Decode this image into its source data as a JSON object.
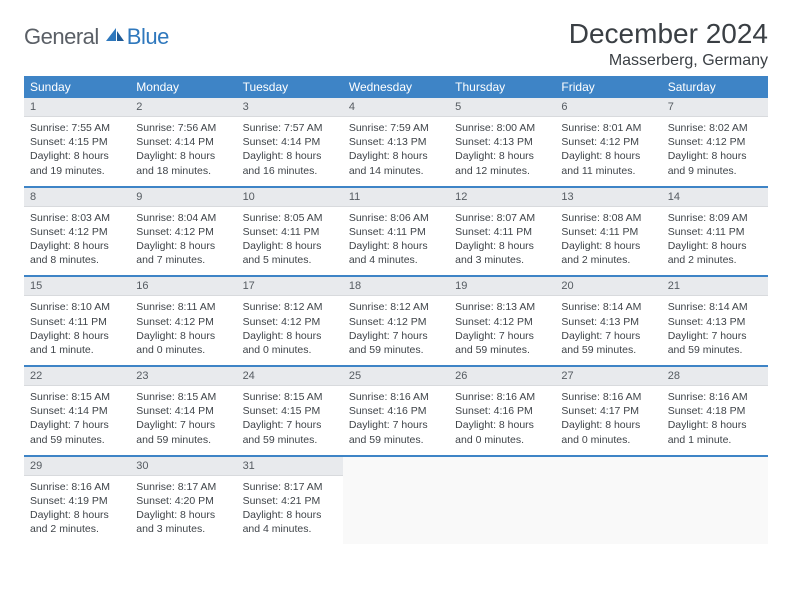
{
  "brand": {
    "part1": "General",
    "part2": "Blue"
  },
  "title": "December 2024",
  "location": "Masserberg, Germany",
  "dayNames": [
    "Sunday",
    "Monday",
    "Tuesday",
    "Wednesday",
    "Thursday",
    "Friday",
    "Saturday"
  ],
  "colors": {
    "headerBg": "#3e84c6",
    "dateBg": "#e8eaed",
    "textDark": "#3a3f44",
    "brandBlue": "#2f78bd",
    "brandGray": "#5a5f66"
  },
  "weeks": [
    [
      {
        "d": "1",
        "sr": "7:55 AM",
        "ss": "4:15 PM",
        "dl": "8 hours and 19 minutes."
      },
      {
        "d": "2",
        "sr": "7:56 AM",
        "ss": "4:14 PM",
        "dl": "8 hours and 18 minutes."
      },
      {
        "d": "3",
        "sr": "7:57 AM",
        "ss": "4:14 PM",
        "dl": "8 hours and 16 minutes."
      },
      {
        "d": "4",
        "sr": "7:59 AM",
        "ss": "4:13 PM",
        "dl": "8 hours and 14 minutes."
      },
      {
        "d": "5",
        "sr": "8:00 AM",
        "ss": "4:13 PM",
        "dl": "8 hours and 12 minutes."
      },
      {
        "d": "6",
        "sr": "8:01 AM",
        "ss": "4:12 PM",
        "dl": "8 hours and 11 minutes."
      },
      {
        "d": "7",
        "sr": "8:02 AM",
        "ss": "4:12 PM",
        "dl": "8 hours and 9 minutes."
      }
    ],
    [
      {
        "d": "8",
        "sr": "8:03 AM",
        "ss": "4:12 PM",
        "dl": "8 hours and 8 minutes."
      },
      {
        "d": "9",
        "sr": "8:04 AM",
        "ss": "4:12 PM",
        "dl": "8 hours and 7 minutes."
      },
      {
        "d": "10",
        "sr": "8:05 AM",
        "ss": "4:11 PM",
        "dl": "8 hours and 5 minutes."
      },
      {
        "d": "11",
        "sr": "8:06 AM",
        "ss": "4:11 PM",
        "dl": "8 hours and 4 minutes."
      },
      {
        "d": "12",
        "sr": "8:07 AM",
        "ss": "4:11 PM",
        "dl": "8 hours and 3 minutes."
      },
      {
        "d": "13",
        "sr": "8:08 AM",
        "ss": "4:11 PM",
        "dl": "8 hours and 2 minutes."
      },
      {
        "d": "14",
        "sr": "8:09 AM",
        "ss": "4:11 PM",
        "dl": "8 hours and 2 minutes."
      }
    ],
    [
      {
        "d": "15",
        "sr": "8:10 AM",
        "ss": "4:11 PM",
        "dl": "8 hours and 1 minute."
      },
      {
        "d": "16",
        "sr": "8:11 AM",
        "ss": "4:12 PM",
        "dl": "8 hours and 0 minutes."
      },
      {
        "d": "17",
        "sr": "8:12 AM",
        "ss": "4:12 PM",
        "dl": "8 hours and 0 minutes."
      },
      {
        "d": "18",
        "sr": "8:12 AM",
        "ss": "4:12 PM",
        "dl": "7 hours and 59 minutes."
      },
      {
        "d": "19",
        "sr": "8:13 AM",
        "ss": "4:12 PM",
        "dl": "7 hours and 59 minutes."
      },
      {
        "d": "20",
        "sr": "8:14 AM",
        "ss": "4:13 PM",
        "dl": "7 hours and 59 minutes."
      },
      {
        "d": "21",
        "sr": "8:14 AM",
        "ss": "4:13 PM",
        "dl": "7 hours and 59 minutes."
      }
    ],
    [
      {
        "d": "22",
        "sr": "8:15 AM",
        "ss": "4:14 PM",
        "dl": "7 hours and 59 minutes."
      },
      {
        "d": "23",
        "sr": "8:15 AM",
        "ss": "4:14 PM",
        "dl": "7 hours and 59 minutes."
      },
      {
        "d": "24",
        "sr": "8:15 AM",
        "ss": "4:15 PM",
        "dl": "7 hours and 59 minutes."
      },
      {
        "d": "25",
        "sr": "8:16 AM",
        "ss": "4:16 PM",
        "dl": "7 hours and 59 minutes."
      },
      {
        "d": "26",
        "sr": "8:16 AM",
        "ss": "4:16 PM",
        "dl": "8 hours and 0 minutes."
      },
      {
        "d": "27",
        "sr": "8:16 AM",
        "ss": "4:17 PM",
        "dl": "8 hours and 0 minutes."
      },
      {
        "d": "28",
        "sr": "8:16 AM",
        "ss": "4:18 PM",
        "dl": "8 hours and 1 minute."
      }
    ],
    [
      {
        "d": "29",
        "sr": "8:16 AM",
        "ss": "4:19 PM",
        "dl": "8 hours and 2 minutes."
      },
      {
        "d": "30",
        "sr": "8:17 AM",
        "ss": "4:20 PM",
        "dl": "8 hours and 3 minutes."
      },
      {
        "d": "31",
        "sr": "8:17 AM",
        "ss": "4:21 PM",
        "dl": "8 hours and 4 minutes."
      },
      null,
      null,
      null,
      null
    ]
  ],
  "labels": {
    "sunrise": "Sunrise:",
    "sunset": "Sunset:",
    "daylight": "Daylight:"
  }
}
